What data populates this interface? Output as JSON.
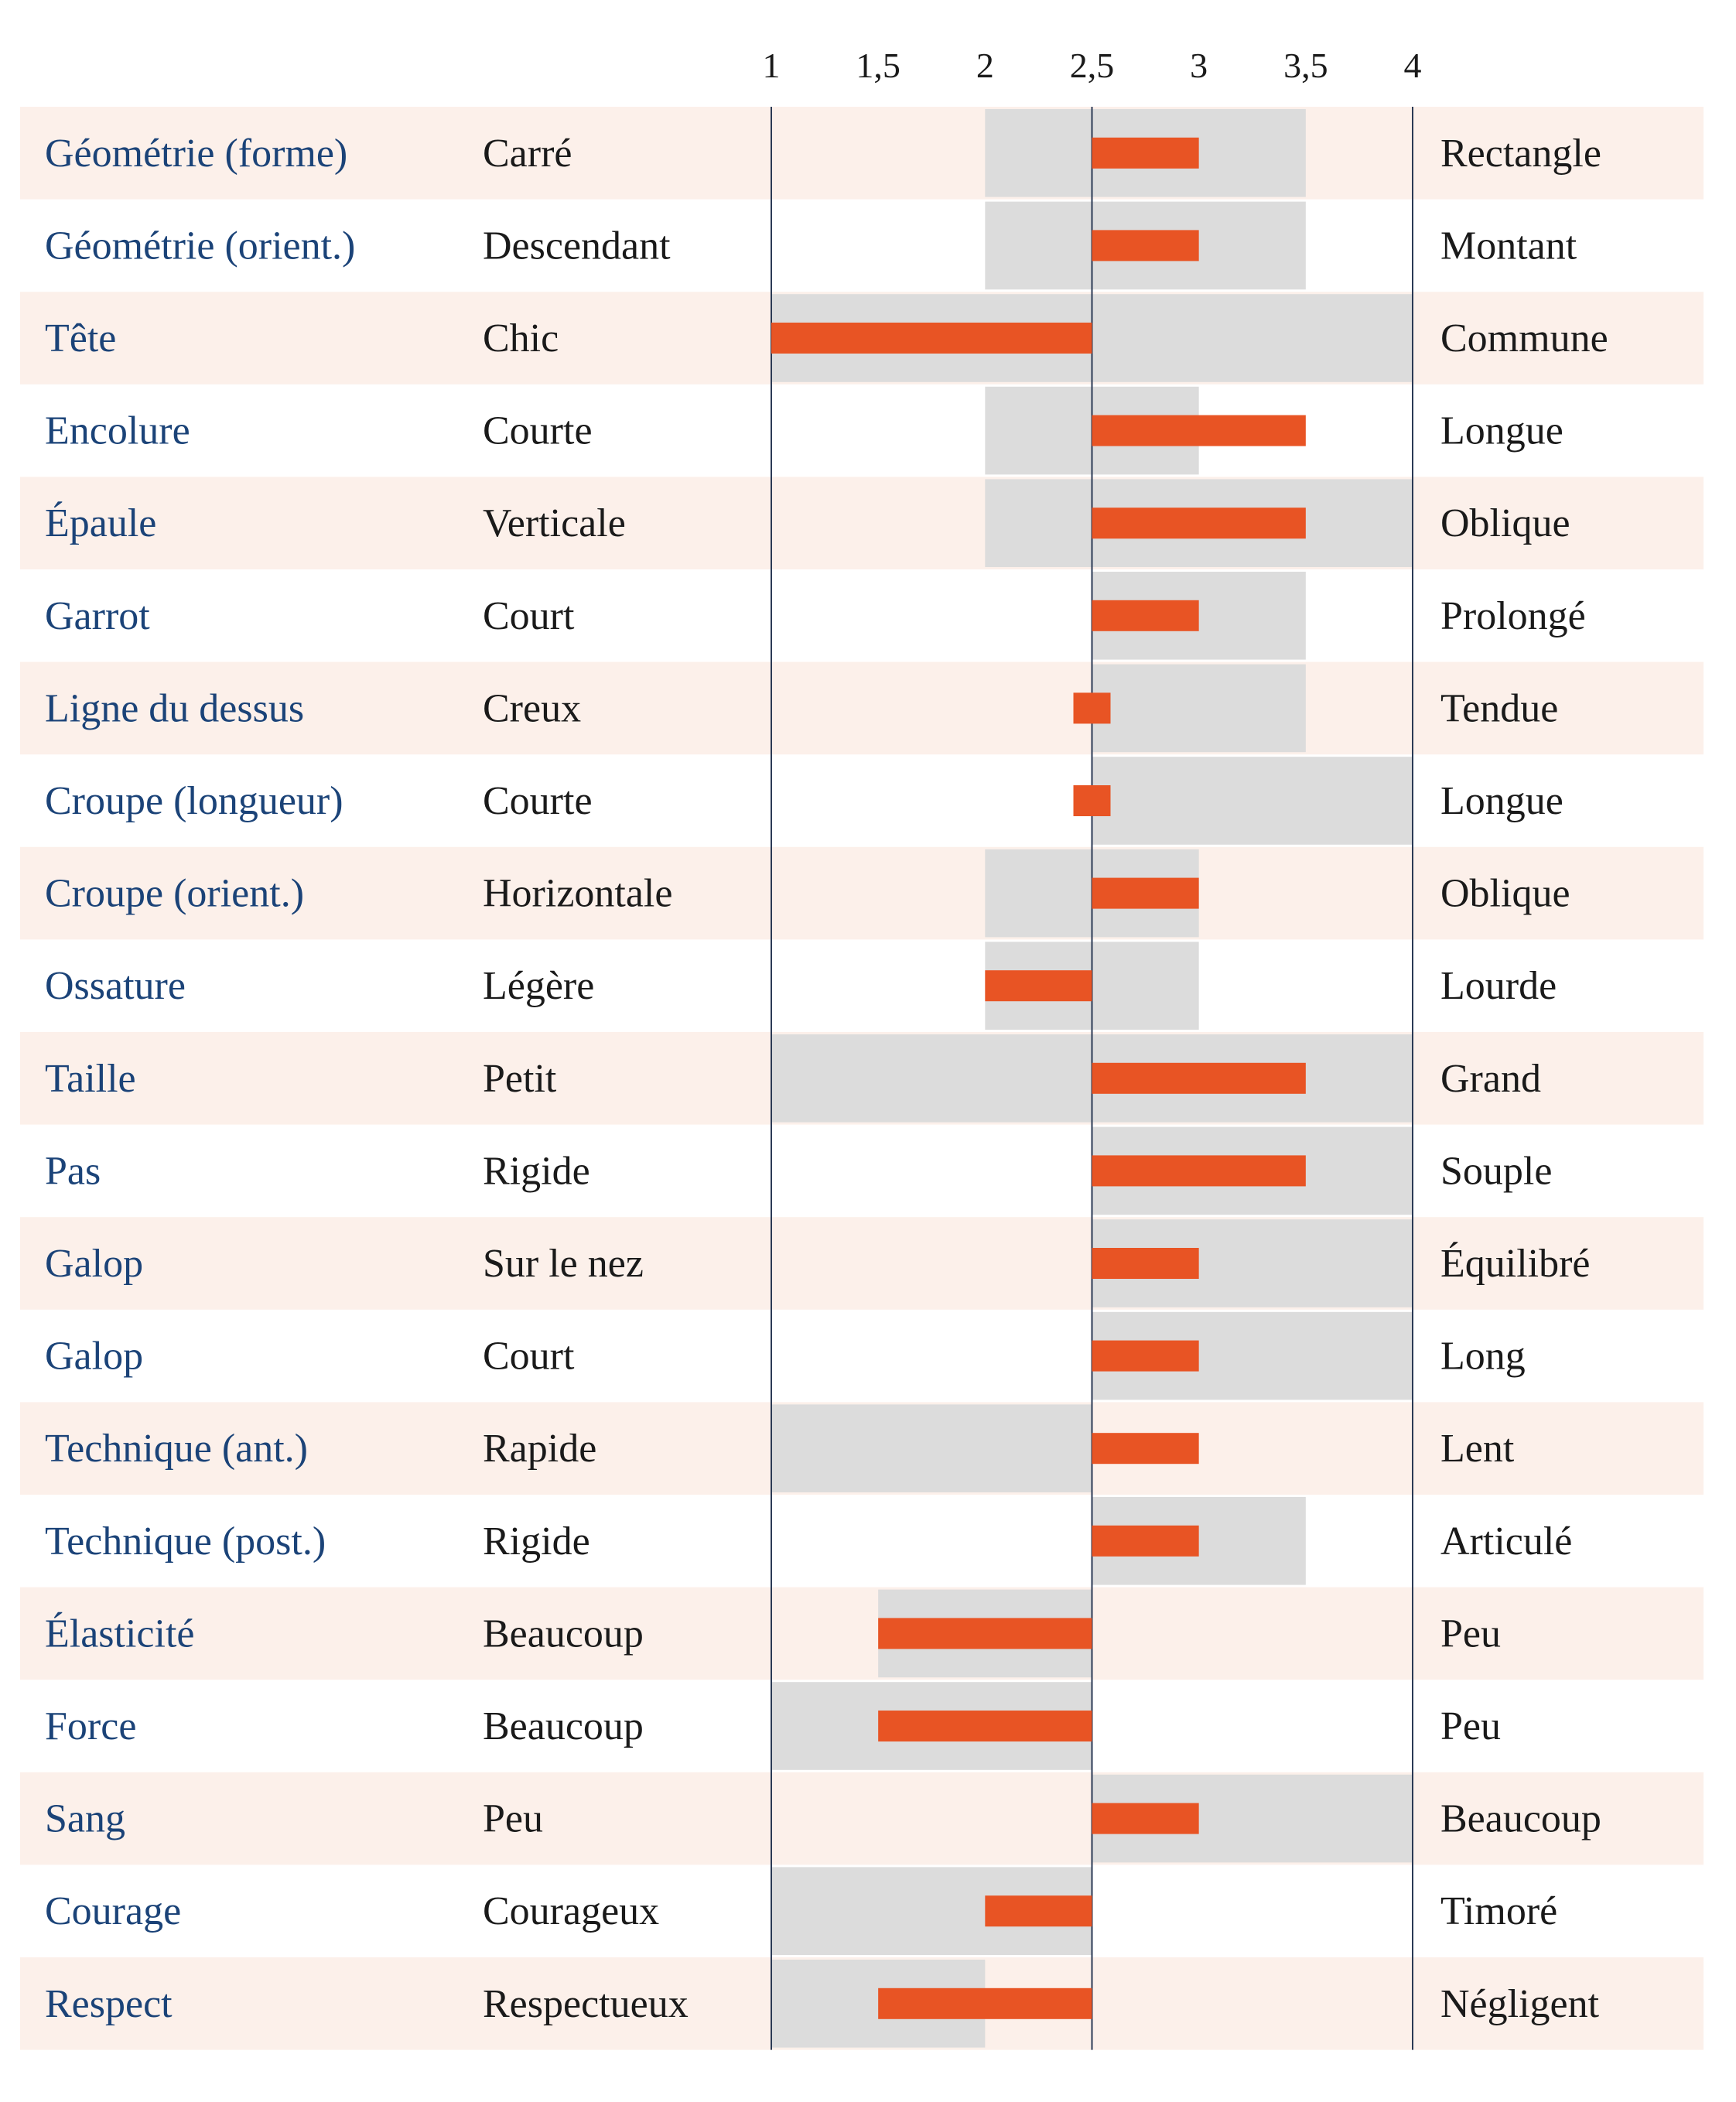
{
  "colors": {
    "row_band": "#fcf0ea",
    "range_bar": "#dcdcdc",
    "value_bar": "#e85424",
    "trait_text": "#1b4378",
    "pole_text": "#1a1a1a",
    "axis_line": "#2b3a55"
  },
  "chart_data": {
    "type": "bar",
    "title": "",
    "xlabel": "",
    "ylabel": "",
    "xlim": [
      1,
      4
    ],
    "baseline": 2.5,
    "x_ticks": [
      1,
      1.5,
      2,
      2.5,
      3,
      3.5,
      4
    ],
    "x_tick_labels": [
      "1",
      "1,5",
      "2",
      "2,5",
      "3",
      "3,5",
      "4"
    ],
    "rows": [
      {
        "trait": "Géométrie (forme)",
        "low_pole": "Carré",
        "high_pole": "Rectangle",
        "value": 3,
        "range": [
          2,
          3.5
        ]
      },
      {
        "trait": "Géométrie (orient.)",
        "low_pole": "Descendant",
        "high_pole": "Montant",
        "value": 3,
        "range": [
          2,
          3.5
        ]
      },
      {
        "trait": "Tête",
        "low_pole": "Chic",
        "high_pole": "Commune",
        "value": 1,
        "range": [
          1,
          4
        ]
      },
      {
        "trait": "Encolure",
        "low_pole": "Courte",
        "high_pole": "Longue",
        "value": 3.5,
        "range": [
          2,
          3
        ]
      },
      {
        "trait": "Épaule",
        "low_pole": "Verticale",
        "high_pole": "Oblique",
        "value": 3.5,
        "range": [
          2,
          4
        ]
      },
      {
        "trait": "Garrot",
        "low_pole": "Court",
        "high_pole": "Prolongé",
        "value": 3,
        "range": [
          2.5,
          3.5
        ]
      },
      {
        "trait": "Ligne du dessus",
        "low_pole": "Creux",
        "high_pole": "Tendue",
        "value": 2.5,
        "range": [
          2.5,
          3.5
        ]
      },
      {
        "trait": "Croupe (longueur)",
        "low_pole": "Courte",
        "high_pole": "Longue",
        "value": 2.5,
        "range": [
          2.5,
          4
        ]
      },
      {
        "trait": "Croupe (orient.)",
        "low_pole": "Horizontale",
        "high_pole": "Oblique",
        "value": 3,
        "range": [
          2,
          3
        ]
      },
      {
        "trait": "Ossature",
        "low_pole": "Légère",
        "high_pole": "Lourde",
        "value": 2,
        "range": [
          2,
          3
        ]
      },
      {
        "trait": "Taille",
        "low_pole": "Petit",
        "high_pole": "Grand",
        "value": 3.5,
        "range": [
          1,
          4
        ]
      },
      {
        "trait": "Pas",
        "low_pole": "Rigide",
        "high_pole": "Souple",
        "value": 3.5,
        "range": [
          2.5,
          4
        ]
      },
      {
        "trait": "Galop",
        "low_pole": "Sur le nez",
        "high_pole": "Équilibré",
        "value": 3,
        "range": [
          2.5,
          4
        ]
      },
      {
        "trait": "Galop",
        "low_pole": "Court",
        "high_pole": "Long",
        "value": 3,
        "range": [
          2.5,
          4
        ]
      },
      {
        "trait": "Technique (ant.)",
        "low_pole": "Rapide",
        "high_pole": "Lent",
        "value": 3,
        "range": [
          1,
          2.5
        ]
      },
      {
        "trait": "Technique (post.)",
        "low_pole": "Rigide",
        "high_pole": "Articulé",
        "value": 3,
        "range": [
          2.5,
          3.5
        ]
      },
      {
        "trait": "Élasticité",
        "low_pole": "Beaucoup",
        "high_pole": "Peu",
        "value": 1.5,
        "range": [
          1.5,
          2.5
        ]
      },
      {
        "trait": "Force",
        "low_pole": "Beaucoup",
        "high_pole": "Peu",
        "value": 1.5,
        "range": [
          1,
          2.5
        ]
      },
      {
        "trait": "Sang",
        "low_pole": "Peu",
        "high_pole": "Beaucoup",
        "value": 3,
        "range": [
          2.5,
          4
        ]
      },
      {
        "trait": "Courage",
        "low_pole": "Courageux",
        "high_pole": "Timoré",
        "value": 2,
        "range": [
          1,
          2.5
        ]
      },
      {
        "trait": "Respect",
        "low_pole": "Respectueux",
        "high_pole": "Négligent",
        "value": 1.5,
        "range": [
          1,
          2
        ]
      }
    ]
  }
}
